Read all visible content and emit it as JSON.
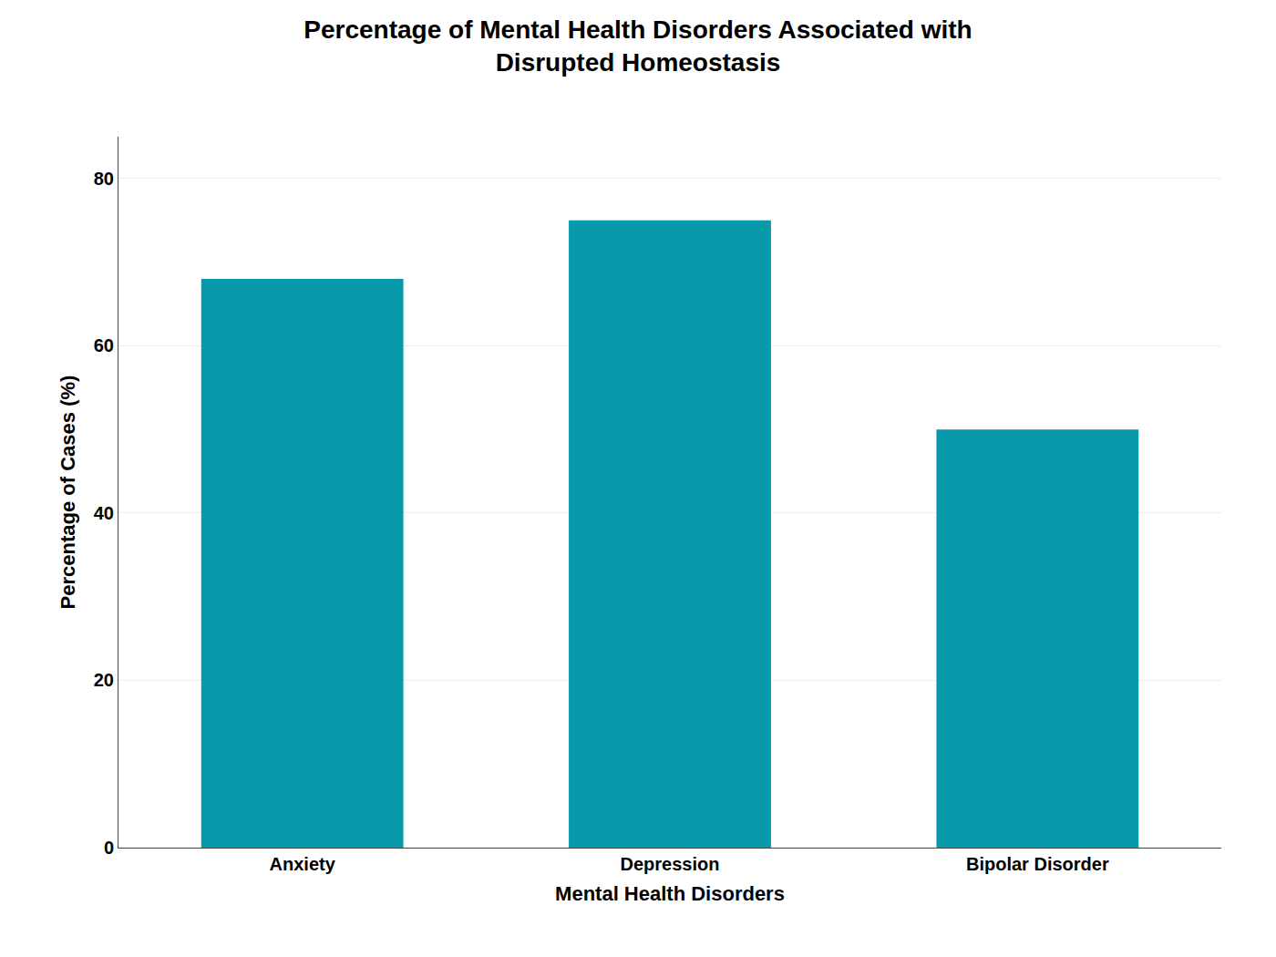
{
  "chart_data": {
    "type": "bar",
    "title": "Percentage of Mental Health Disorders Associated with\nDisrupted Homeostasis",
    "xlabel": "Mental Health Disorders",
    "ylabel": "Percentage of Cases (%)",
    "categories": [
      "Anxiety",
      "Depression",
      "Bipolar Disorder"
    ],
    "values": [
      68,
      75,
      50
    ],
    "color": "#0899aa",
    "ylim": [
      0,
      85
    ],
    "yticks": [
      0,
      20,
      40,
      60,
      80
    ],
    "grid": true
  }
}
